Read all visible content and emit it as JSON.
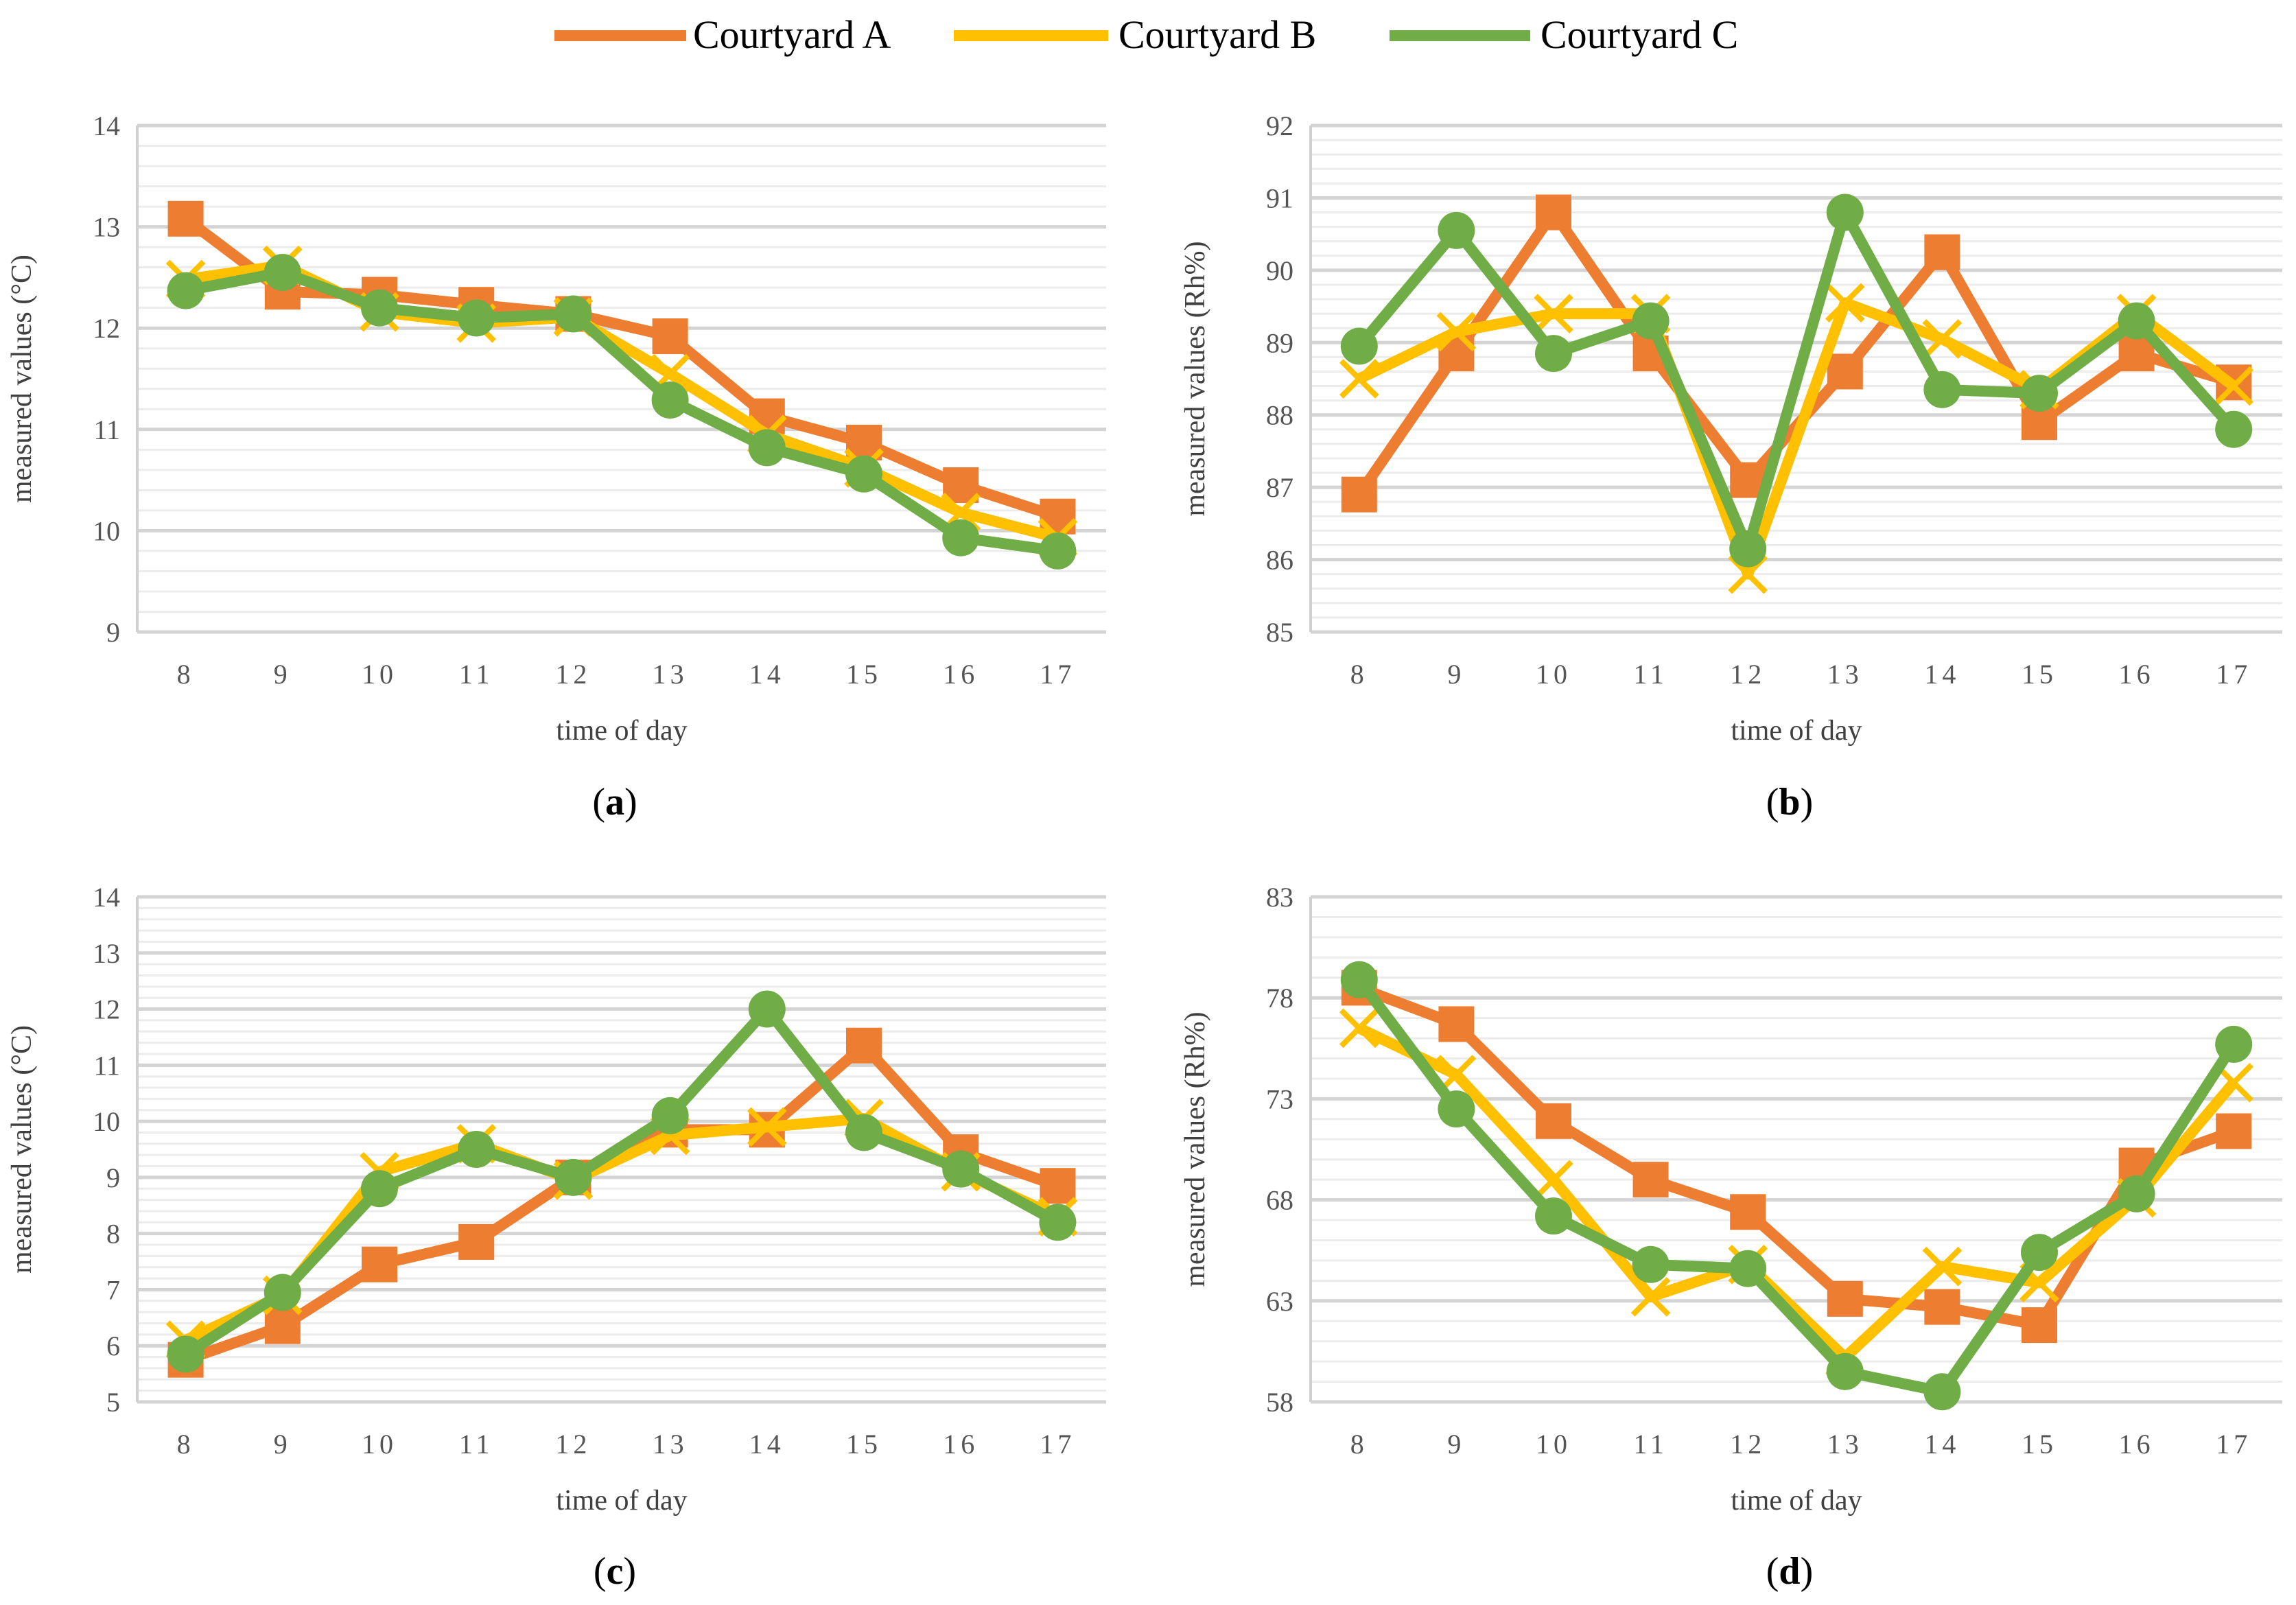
{
  "legend": [
    {
      "name": "Courtyard A",
      "color": "#ED7D31",
      "marker": "square"
    },
    {
      "name": "Courtyard B",
      "color": "#FFC000",
      "marker": "cross"
    },
    {
      "name": "Courtyard C",
      "color": "#70AD47",
      "marker": "circle"
    }
  ],
  "chart_data": [
    {
      "type": "line",
      "caption_open": "(",
      "caption_letter": "a",
      "caption_close": ")",
      "xlabel": "time of day",
      "ylabel": "measured values (°C)",
      "ylim": [
        9,
        14
      ],
      "yticks": [
        "9",
        "10",
        "11",
        "12",
        "13",
        "14"
      ],
      "categories": [
        "8",
        "9",
        "10",
        "11",
        "12",
        "13",
        "14",
        "15",
        "16",
        "17"
      ],
      "series": [
        {
          "name": "Courtyard A",
          "values": [
            13.08,
            12.36,
            12.33,
            12.23,
            12.14,
            11.92,
            11.13,
            10.87,
            10.45,
            10.14
          ]
        },
        {
          "name": "Courtyard B",
          "values": [
            12.48,
            12.62,
            12.16,
            12.05,
            12.11,
            11.55,
            10.95,
            10.62,
            10.18,
            9.93
          ]
        },
        {
          "name": "Courtyard C",
          "values": [
            12.37,
            12.55,
            12.2,
            12.1,
            12.14,
            11.29,
            10.82,
            10.56,
            9.93,
            9.8
          ]
        }
      ]
    },
    {
      "type": "line",
      "caption_open": "(",
      "caption_letter": "b",
      "caption_close": ")",
      "xlabel": "time of day",
      "ylabel": "measured values (Rh%)",
      "ylim": [
        85,
        92
      ],
      "yticks": [
        "85",
        "86",
        "87",
        "88",
        "89",
        "90",
        "91",
        "92"
      ],
      "categories": [
        "8",
        "9",
        "10",
        "11",
        "12",
        "13",
        "14",
        "15",
        "16",
        "17"
      ],
      "series": [
        {
          "name": "Courtyard A",
          "values": [
            86.9,
            88.85,
            90.8,
            88.85,
            87.1,
            88.6,
            90.25,
            87.9,
            88.85,
            88.45
          ]
        },
        {
          "name": "Courtyard B",
          "values": [
            88.5,
            89.15,
            89.4,
            89.4,
            85.8,
            89.55,
            89.05,
            88.35,
            89.4,
            88.4
          ]
        },
        {
          "name": "Courtyard C",
          "values": [
            88.95,
            90.55,
            88.85,
            89.3,
            86.15,
            90.8,
            88.35,
            88.3,
            89.3,
            87.8
          ]
        }
      ]
    },
    {
      "type": "line",
      "caption_open": "(",
      "caption_letter": "c",
      "caption_close": ")",
      "xlabel": "time of day",
      "ylabel": "measured values (°C)",
      "ylim": [
        5,
        14
      ],
      "yticks": [
        "5",
        "6",
        "7",
        "8",
        "9",
        "10",
        "11",
        "12",
        "13",
        "14"
      ],
      "categories": [
        "8",
        "9",
        "10",
        "11",
        "12",
        "13",
        "14",
        "15",
        "16",
        "17"
      ],
      "series": [
        {
          "name": "Courtyard A",
          "values": [
            5.75,
            6.35,
            7.45,
            7.85,
            9.0,
            9.85,
            9.85,
            11.35,
            9.45,
            8.85
          ]
        },
        {
          "name": "Courtyard B",
          "values": [
            6.1,
            6.9,
            9.1,
            9.6,
            8.95,
            9.75,
            9.9,
            10.05,
            9.1,
            8.3
          ]
        },
        {
          "name": "Courtyard C",
          "values": [
            5.85,
            6.95,
            8.8,
            9.5,
            9.0,
            10.1,
            12.0,
            9.8,
            9.15,
            8.2
          ]
        }
      ]
    },
    {
      "type": "line",
      "caption_open": "(",
      "caption_letter": "d",
      "caption_close": ")",
      "xlabel": "time of day",
      "ylabel": "measured values (Rh%)",
      "ylim": [
        58,
        83
      ],
      "yticks": [
        "58",
        "63",
        "68",
        "73",
        "78",
        "83"
      ],
      "categories": [
        "8",
        "9",
        "10",
        "11",
        "12",
        "13",
        "14",
        "15",
        "16",
        "17"
      ],
      "series": [
        {
          "name": "Courtyard A",
          "values": [
            78.5,
            76.7,
            71.9,
            69.0,
            67.4,
            63.1,
            62.7,
            61.8,
            69.7,
            71.4
          ]
        },
        {
          "name": "Courtyard B",
          "values": [
            76.5,
            74.2,
            69.0,
            63.2,
            64.8,
            60.2,
            64.7,
            63.9,
            68.1,
            73.8
          ]
        },
        {
          "name": "Courtyard C",
          "values": [
            78.9,
            72.5,
            67.2,
            64.8,
            64.6,
            59.5,
            58.5,
            65.4,
            68.3,
            75.7
          ]
        }
      ]
    }
  ]
}
